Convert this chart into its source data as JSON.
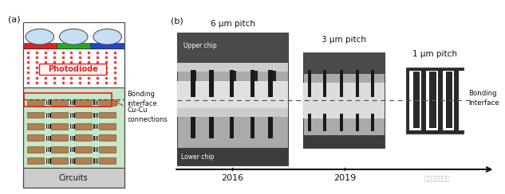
{
  "fig_width": 6.33,
  "fig_height": 2.44,
  "bg_color": "#ffffff",
  "panel_a_label": "(a)",
  "panel_b_label": "(b)",
  "colors": {
    "light_green": "#c8e6c9",
    "photodiode_dot": "#e53935",
    "red_bar": "#dd2222",
    "green_bar": "#22aa22",
    "blue_bar": "#2244cc",
    "bubble_blue": "#c5dff5",
    "circuits_gray": "#cccccc",
    "cu_brown": "#b08050",
    "arrow_red": "#dd2222",
    "text_dark": "#111111",
    "dashed_line": "#555555"
  },
  "photodiode_label": "Photodiode",
  "bonding_label_a": "Bonding\ninterface",
  "cu_cu_label": "Cu-Cu\nconnections",
  "circuits_label": "Circuits",
  "pitch_labels": [
    "6 μm pitch",
    "3 μm pitch",
    "1 μm pitch"
  ],
  "upper_chip_label": "Upper chip",
  "lower_chip_label": "Lower chip",
  "bonding_label_b": "Bonding\ninterface",
  "year_labels": [
    "2016",
    "2019"
  ],
  "watermark": "拟态体行业观察"
}
